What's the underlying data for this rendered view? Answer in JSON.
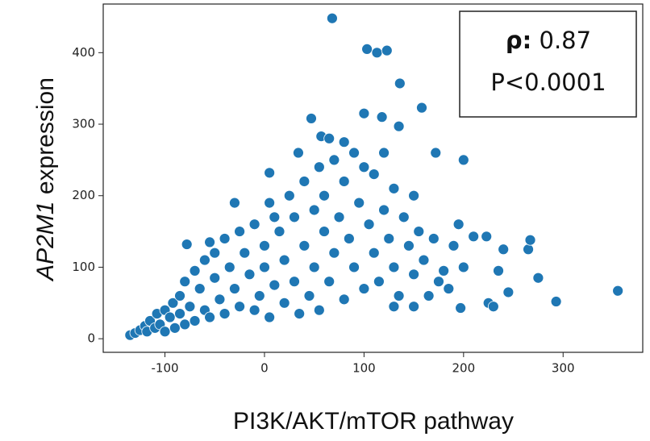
{
  "chart_data": {
    "type": "scatter",
    "xlabel": "PI3K/AKT/mTOR pathway",
    "ylabel_italic": "AP2M1",
    "ylabel_rest": "expression",
    "annotation": {
      "label": "ρ:",
      "value": 0.87,
      "pvalue": "P<0.0001"
    },
    "color": "#1f77b4",
    "xlim": [
      -162,
      380
    ],
    "ylim": [
      -19,
      468
    ],
    "xticks": [
      -100,
      0,
      100,
      200,
      300
    ],
    "yticks": [
      0,
      100,
      200,
      300,
      400
    ],
    "grid": false,
    "x": [
      -135,
      -130,
      -125,
      -120,
      -118,
      -115,
      -110,
      -108,
      -105,
      -100,
      -100,
      -95,
      -92,
      -90,
      -85,
      -85,
      -80,
      -80,
      -75,
      -70,
      -70,
      -65,
      -60,
      -60,
      -55,
      -50,
      -50,
      -45,
      -40,
      -40,
      -35,
      -30,
      -25,
      -25,
      -20,
      -15,
      -10,
      -10,
      -5,
      0,
      0,
      5,
      5,
      10,
      15,
      20,
      20,
      25,
      30,
      30,
      35,
      40,
      40,
      45,
      50,
      50,
      55,
      55,
      60,
      60,
      65,
      70,
      70,
      75,
      80,
      80,
      85,
      90,
      90,
      95,
      100,
      100,
      105,
      110,
      110,
      115,
      120,
      120,
      125,
      130,
      130,
      135,
      140,
      145,
      150,
      150,
      155,
      160,
      165,
      170,
      175,
      190,
      195,
      68,
      103,
      113,
      123,
      136,
      158,
      200,
      47,
      100,
      118,
      135,
      57,
      65,
      80,
      34,
      172,
      200,
      210,
      223,
      240,
      235,
      245,
      265,
      267,
      275,
      293,
      355,
      225,
      230,
      197,
      185,
      180,
      150,
      130,
      -78,
      -55,
      -30,
      5,
      10
    ],
    "y": [
      5,
      8,
      12,
      18,
      10,
      25,
      15,
      35,
      20,
      40,
      10,
      30,
      50,
      15,
      60,
      35,
      80,
      20,
      45,
      95,
      25,
      70,
      110,
      40,
      30,
      85,
      120,
      55,
      140,
      35,
      100,
      70,
      150,
      45,
      120,
      90,
      160,
      40,
      60,
      130,
      100,
      190,
      30,
      75,
      150,
      110,
      50,
      200,
      170,
      80,
      35,
      130,
      220,
      60,
      180,
      100,
      240,
      40,
      150,
      200,
      80,
      250,
      120,
      170,
      55,
      220,
      140,
      260,
      100,
      190,
      70,
      240,
      160,
      120,
      230,
      80,
      180,
      260,
      140,
      210,
      100,
      60,
      170,
      130,
      200,
      90,
      150,
      110,
      60,
      140,
      80,
      130,
      160,
      448,
      405,
      400,
      403,
      357,
      323,
      250,
      308,
      315,
      310,
      297,
      283,
      280,
      275,
      260,
      260,
      100,
      143,
      143,
      125,
      95,
      65,
      125,
      138,
      85,
      52,
      67,
      50,
      45,
      43,
      70,
      95,
      45,
      45,
      132,
      135,
      190,
      232,
      170
    ]
  }
}
